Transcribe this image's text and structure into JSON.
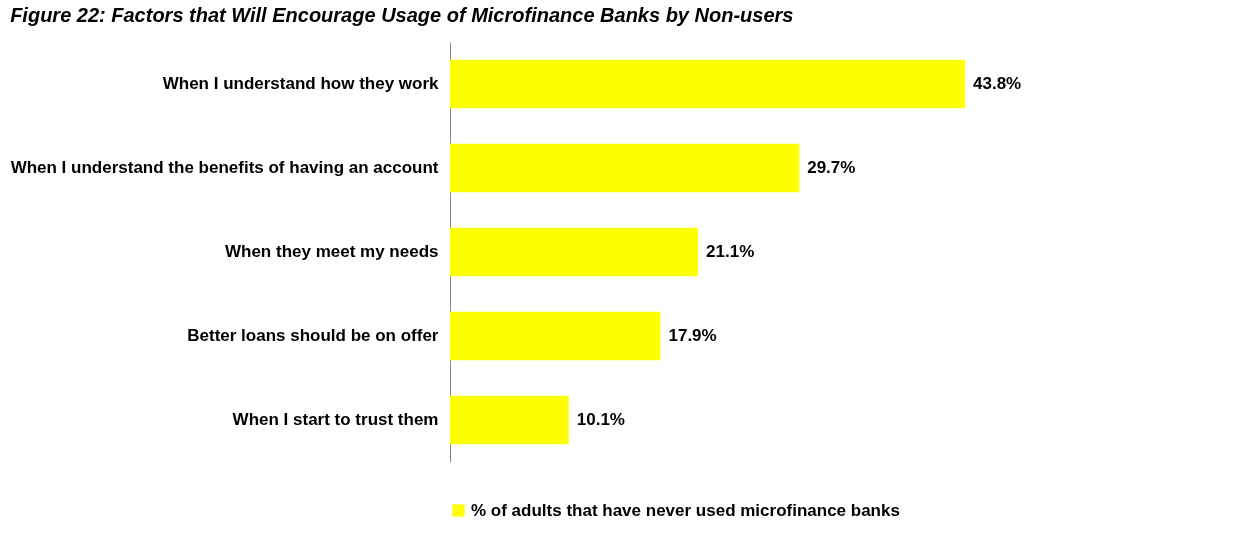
{
  "chart_data": {
    "type": "bar",
    "orientation": "horizontal",
    "title": "Figure 22: Factors that Will Encourage Usage of Microfinance Banks by Non-users",
    "categories": [
      "When I understand how they work",
      "When I understand the benefits of having an account",
      "When they meet my needs",
      "Better loans should be on offer",
      "When I start to trust them"
    ],
    "series": [
      {
        "name": "% of adults that have never used microfinance banks",
        "color": "#ffff00",
        "values": [
          43.8,
          29.7,
          21.1,
          17.9,
          10.1
        ],
        "value_labels": [
          "43.8%",
          "29.7%",
          "21.1%",
          "17.9%",
          "10.1%"
        ]
      }
    ],
    "legend": "bottom"
  }
}
